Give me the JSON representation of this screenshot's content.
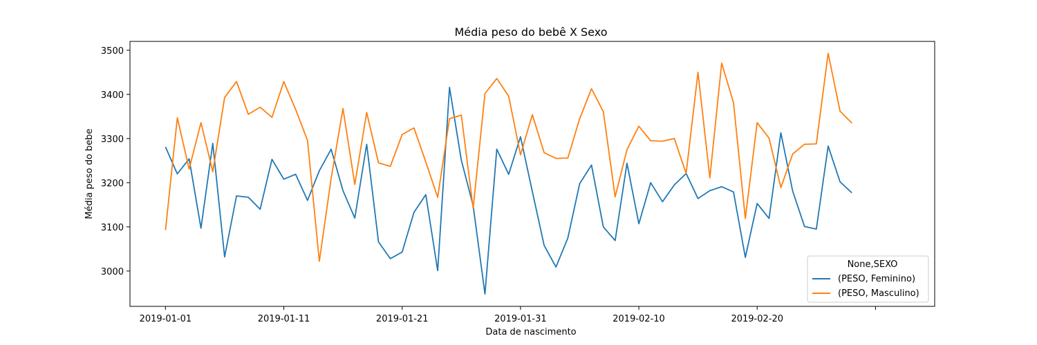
{
  "chart_data": {
    "type": "line",
    "title": "Média peso do bebê X Sexo",
    "xlabel": "Data de nascimento",
    "ylabel": "Média peso do bebe",
    "x_start_date": "2019-01-01",
    "x_ticks": [
      "2019-01-01",
      "2019-01-11",
      "2019-01-21",
      "2019-01-31",
      "2019-02-10",
      "2019-02-20"
    ],
    "xlim": [
      "2018-12-29",
      "2019-03-07"
    ],
    "y_ticks": [
      "3000",
      "3100",
      "3200",
      "3300",
      "3400",
      "3500"
    ],
    "ylim": [
      2920,
      3520
    ],
    "grid": false,
    "legend": {
      "title": "None,SEXO",
      "position": "lower-right"
    },
    "series": [
      {
        "name": "(PESO, Feminino)",
        "color": "#1f77b4",
        "values": [
          3281,
          3220,
          3254,
          3097,
          3289,
          3032,
          3170,
          3167,
          3140,
          3253,
          3208,
          3219,
          3160,
          3227,
          3276,
          3182,
          3120,
          3287,
          3066,
          3028,
          3043,
          3133,
          3173,
          3001,
          3416,
          3251,
          3148,
          2948,
          3276,
          3219,
          3304,
          3180,
          3058,
          3009,
          3075,
          3198,
          3240,
          3100,
          3069,
          3244,
          3107,
          3200,
          3157,
          3195,
          3221,
          3164,
          3182,
          3191,
          3179,
          3031,
          3153,
          3119,
          3313,
          3181,
          3101,
          3095,
          3283,
          3202,
          3177
        ]
      },
      {
        "name": "(PESO, Masculino)",
        "color": "#ff7f0e",
        "values": [
          3093,
          3347,
          3231,
          3336,
          3225,
          3393,
          3429,
          3355,
          3371,
          3348,
          3429,
          3366,
          3296,
          3022,
          3210,
          3368,
          3196,
          3359,
          3245,
          3237,
          3309,
          3324,
          3247,
          3167,
          3345,
          3353,
          3142,
          3402,
          3436,
          3396,
          3263,
          3354,
          3268,
          3255,
          3256,
          3345,
          3413,
          3361,
          3168,
          3275,
          3328,
          3295,
          3294,
          3300,
          3221,
          3450,
          3211,
          3471,
          3381,
          3119,
          3336,
          3301,
          3189,
          3265,
          3287,
          3288,
          3493,
          3362,
          3335
        ]
      }
    ]
  }
}
